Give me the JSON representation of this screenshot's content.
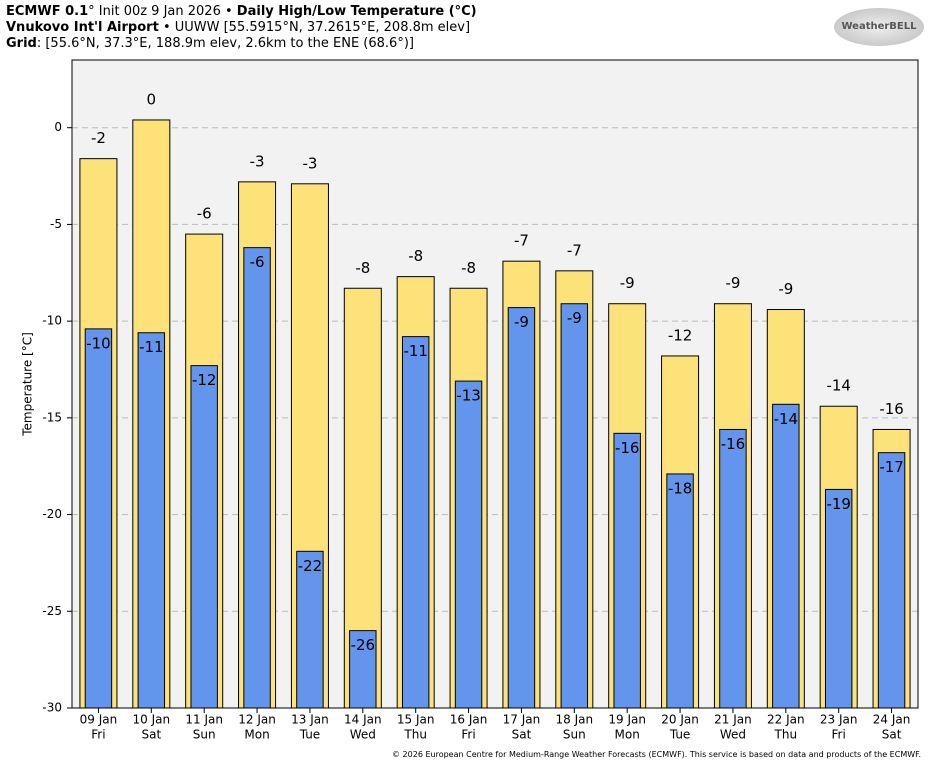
{
  "header": {
    "model": "ECMWF 0.1",
    "init": "° Init 00z 9 Jan 2026 •",
    "product": "Daily High/Low Temperature (°C)",
    "station": "Vnukovo Int'l Airport",
    "station_info": "• UUWW [55.5915°N, 37.2615°E, 208.8m elev]",
    "grid_label": "Grid",
    "grid_info": ": [55.6°N, 37.3°E, 188.9m elev, 2.6km to the ENE (68.6°)]",
    "logo": "WeatherBELL"
  },
  "footer": "© 2026 European Centre for Medium-Range Weather Forecasts (ECMWF). This service is based on data and products of the ECMWF.",
  "chart_data": {
    "type": "bar",
    "ylabel": "Temperature [°C]",
    "categories": [
      "09 Jan",
      "10 Jan",
      "11 Jan",
      "12 Jan",
      "13 Jan",
      "14 Jan",
      "15 Jan",
      "16 Jan",
      "17 Jan",
      "18 Jan",
      "19 Jan",
      "20 Jan",
      "21 Jan",
      "22 Jan",
      "23 Jan",
      "24 Jan"
    ],
    "weekdays": [
      "Fri",
      "Sat",
      "Sun",
      "Mon",
      "Tue",
      "Wed",
      "Thu",
      "Fri",
      "Sat",
      "Sun",
      "Mon",
      "Tue",
      "Wed",
      "Thu",
      "Fri",
      "Sat"
    ],
    "series": [
      {
        "color": "#fde27a",
        "values": [
          -1.6,
          0.4,
          -5.5,
          -2.8,
          -2.9,
          -8.3,
          -7.7,
          -8.3,
          -6.9,
          -7.4,
          -9.1,
          -11.8,
          -9.1,
          -9.4,
          -14.4,
          -15.6
        ],
        "value_labels": [
          "-2",
          "0",
          "-6",
          "-3",
          "-3",
          "-8",
          "-8",
          "-8",
          "-7",
          "-7",
          "-9",
          "-12",
          "-9",
          "-9",
          "-14",
          "-16"
        ]
      },
      {
        "color": "#6495ed",
        "values": [
          -10.4,
          -10.6,
          -12.3,
          -6.2,
          -21.9,
          -26.0,
          -10.8,
          -13.1,
          -9.3,
          -9.1,
          -15.8,
          -17.9,
          -15.6,
          -14.3,
          -18.7,
          -16.8
        ],
        "value_labels": [
          "-10",
          "-11",
          "-12",
          "-6",
          "-22",
          "-26",
          "-11",
          "-13",
          "-9",
          "-9",
          "-16",
          "-18",
          "-16",
          "-14",
          "-19",
          "-17"
        ]
      }
    ],
    "ylim": [
      -30,
      3.5
    ],
    "yticks": [
      -30,
      -25,
      -20,
      -15,
      -10,
      -5,
      0
    ],
    "grid": true
  }
}
